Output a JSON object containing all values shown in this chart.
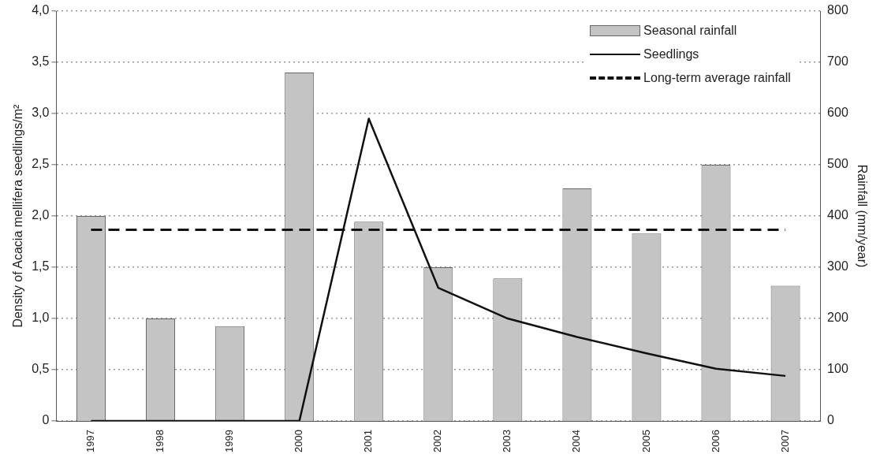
{
  "chart_data": {
    "type": "bar",
    "xlabel": null,
    "ylabel": "Density of Acacia mellifera seedlings/m²",
    "y2label": "Rainfall (mm/year)",
    "categories": [
      "1997",
      "1998",
      "1999",
      "2000",
      "2001",
      "2002",
      "2003",
      "2004",
      "2005",
      "2006",
      "2007"
    ],
    "series": [
      {
        "name": "Seasonal rainfall",
        "axis": "y2",
        "color": "#c4c4c4",
        "values": [
          400,
          200,
          185,
          680,
          389,
          300,
          278,
          454,
          366,
          500,
          264
        ]
      },
      {
        "name": "Seedlings",
        "type": "line",
        "color": "#111111",
        "values": [
          0,
          0,
          0,
          0,
          2.95,
          1.3,
          1.0,
          0.82,
          0.66,
          0.51,
          0.44
        ]
      }
    ],
    "ref_lines": [
      {
        "axis": "y2",
        "value": 373,
        "label": "Long-term average rainfall",
        "color": "#111111",
        "line_style": "dashed"
      }
    ],
    "ylim": [
      0,
      4
    ],
    "yticks": [
      0,
      {
        "value": 0.5,
        "label": "0,5"
      },
      {
        "value": 1,
        "label": "1,0"
      },
      {
        "value": 1.5,
        "label": "1,5"
      },
      {
        "value": 2,
        "label": "2,0"
      },
      {
        "value": 2.5,
        "label": "2,5"
      },
      {
        "value": 3,
        "label": "3,0"
      },
      {
        "value": 3.5,
        "label": "3,5"
      },
      {
        "value": 4,
        "label": "4,0"
      }
    ],
    "y2lim": [
      0,
      800
    ],
    "y2ticks": [
      0,
      100,
      200,
      300,
      400,
      500,
      600,
      700,
      800
    ],
    "grid": "y",
    "legend": "top right",
    "marker": "none",
    "line_style": "solid"
  }
}
